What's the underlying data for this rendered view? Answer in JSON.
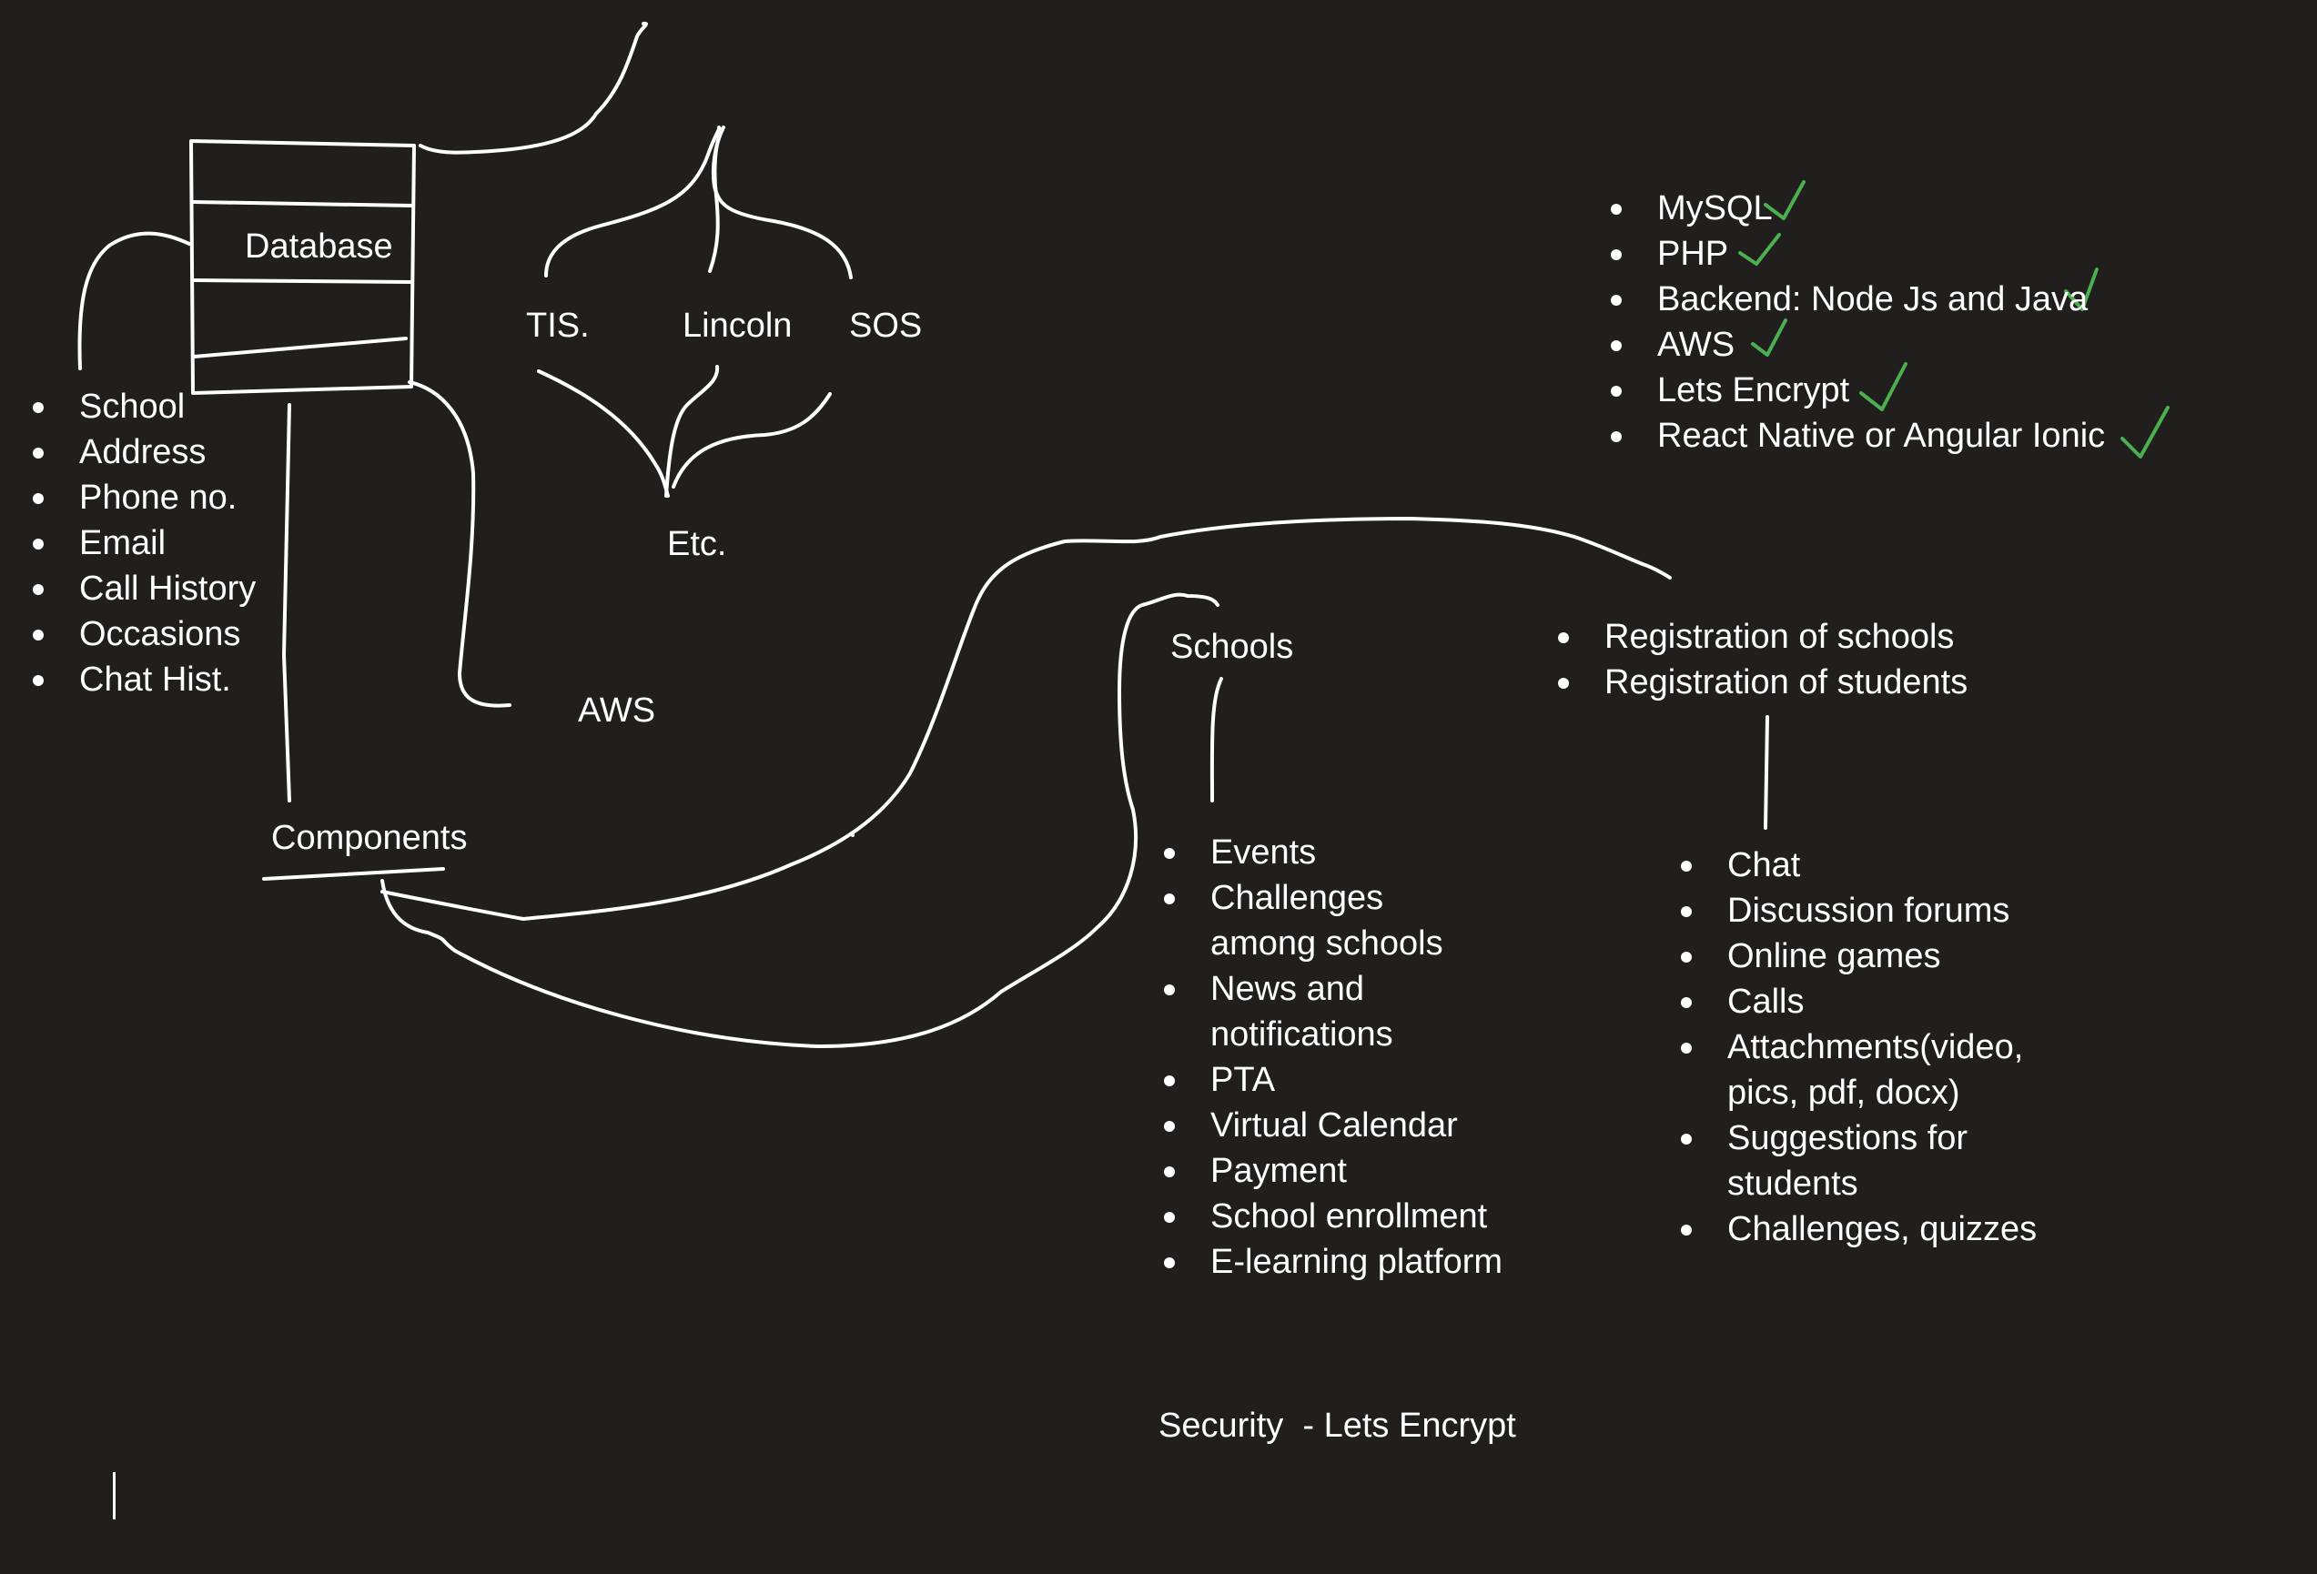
{
  "labels": {
    "database": "Database",
    "tis": "TIS.",
    "lincoln": "Lincoln",
    "sos": "SOS",
    "etc": "Etc.",
    "aws": "AWS",
    "components": "Components",
    "schools": "Schools",
    "security": "Security  - Lets Encrypt"
  },
  "database_fields": [
    "School",
    "Address",
    "Phone no.",
    "Email",
    "Call History",
    "Occasions",
    "Chat Hist."
  ],
  "tech_stack": [
    "MySQL",
    "PHP",
    "Backend: Node Js and Java",
    "AWS",
    "Lets Encrypt",
    "React Native or Angular Ionic"
  ],
  "registration": [
    "Registration of schools",
    "Registration of students"
  ],
  "school_features": [
    "Events",
    "Challenges among schools",
    "News and notifications",
    "PTA",
    "Virtual Calendar",
    "Payment",
    "School enrollment",
    "E-learning platform"
  ],
  "student_features": [
    "Chat",
    "Discussion forums",
    "Online games",
    "Calls",
    "Attachments(video, pics, pdf, docx)",
    "Suggestions for students",
    "Challenges, quizzes"
  ],
  "colors": {
    "background": "#201f1e",
    "ink": "#ffffff",
    "check": "#4caf50"
  },
  "icons": {
    "check": "check-mark-icon"
  }
}
